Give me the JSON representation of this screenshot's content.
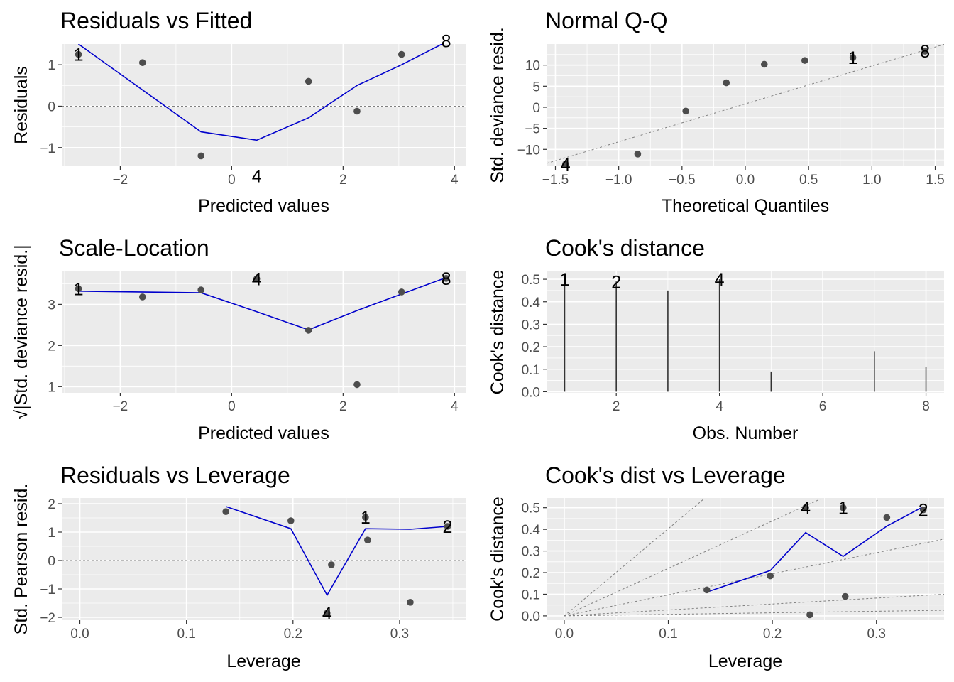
{
  "chart_data": [
    {
      "id": "p1",
      "type": "scatter",
      "title": "Residuals vs Fitted",
      "xlabel": "Predicted values",
      "ylabel": "Residuals",
      "xlim": [
        -3.05,
        4.2
      ],
      "ylim": [
        -1.45,
        1.5
      ],
      "xticks": [
        -2,
        0,
        2,
        4
      ],
      "yticks": [
        -1,
        0,
        1
      ],
      "hline": 0,
      "points": [
        {
          "x": -2.75,
          "y": 1.25
        },
        {
          "x": -1.6,
          "y": 1.05
        },
        {
          "x": -0.55,
          "y": -1.2
        },
        {
          "x": 0.45,
          "y": -1.68
        },
        {
          "x": 1.38,
          "y": 0.6
        },
        {
          "x": 2.25,
          "y": -0.12
        },
        {
          "x": 3.05,
          "y": 1.25
        },
        {
          "x": 3.85,
          "y": 1.58
        }
      ],
      "smooth": {
        "x": [
          -2.75,
          -0.55,
          0.45,
          1.38,
          2.25,
          3.05,
          3.85
        ],
        "y": [
          1.5,
          -0.62,
          -0.82,
          -0.28,
          0.5,
          1.0,
          1.55
        ]
      },
      "labels": [
        {
          "x": -2.75,
          "y": 1.25,
          "text": "1"
        },
        {
          "x": 0.45,
          "y": -1.68,
          "text": "4"
        },
        {
          "x": 3.85,
          "y": 1.58,
          "text": "8"
        }
      ]
    },
    {
      "id": "p2",
      "type": "scatter",
      "title": "Normal Q-Q",
      "xlabel": "Theoretical Quantiles",
      "ylabel": "Std. deviance resid.",
      "xlim": [
        -1.57,
        1.57
      ],
      "ylim": [
        -14,
        15
      ],
      "xticks": [
        -1.5,
        -1.0,
        -0.5,
        0.0,
        0.5,
        1.0,
        1.5
      ],
      "yticks": [
        -10,
        -5,
        0,
        5,
        10
      ],
      "refline": {
        "x": [
          -1.6,
          1.6
        ],
        "y": [
          -13.6,
          15.2
        ]
      },
      "points": [
        {
          "x": -1.42,
          "y": -13.5
        },
        {
          "x": -0.85,
          "y": -11.1
        },
        {
          "x": -0.47,
          "y": -0.9
        },
        {
          "x": -0.15,
          "y": 5.8
        },
        {
          "x": 0.15,
          "y": 10.2
        },
        {
          "x": 0.47,
          "y": 11.1
        },
        {
          "x": 0.85,
          "y": 11.8
        },
        {
          "x": 1.42,
          "y": 13.3
        }
      ],
      "labels": [
        {
          "x": -1.42,
          "y": -13.5,
          "text": "4"
        },
        {
          "x": 0.85,
          "y": 11.8,
          "text": "1"
        },
        {
          "x": 1.42,
          "y": 13.3,
          "text": "8"
        }
      ]
    },
    {
      "id": "p3",
      "type": "scatter",
      "title": "Scale-Location",
      "xlabel": "Predicted values",
      "ylabel": "√|Std. deviance resid.|",
      "xlim": [
        -3.05,
        4.2
      ],
      "ylim": [
        0.85,
        3.8
      ],
      "xticks": [
        -2,
        0,
        2,
        4
      ],
      "yticks": [
        1,
        2,
        3
      ],
      "points": [
        {
          "x": -2.75,
          "y": 3.38
        },
        {
          "x": -1.6,
          "y": 3.18
        },
        {
          "x": -0.55,
          "y": 3.35
        },
        {
          "x": 0.45,
          "y": 3.62
        },
        {
          "x": 1.38,
          "y": 2.37
        },
        {
          "x": 2.25,
          "y": 1.05
        },
        {
          "x": 3.05,
          "y": 3.3
        },
        {
          "x": 3.85,
          "y": 3.63
        }
      ],
      "smooth": {
        "x": [
          -2.75,
          -0.55,
          0.45,
          1.38,
          2.25,
          3.05,
          3.85
        ],
        "y": [
          3.32,
          3.28,
          2.82,
          2.38,
          2.85,
          3.25,
          3.65
        ]
      },
      "labels": [
        {
          "x": -2.75,
          "y": 3.38,
          "text": "1"
        },
        {
          "x": 0.45,
          "y": 3.62,
          "text": "4"
        },
        {
          "x": 3.85,
          "y": 3.63,
          "text": "8"
        }
      ]
    },
    {
      "id": "p4",
      "type": "bar",
      "title": "Cook's distance",
      "xlabel": "Obs. Number",
      "ylabel": "Cook's distance",
      "xlim": [
        0.65,
        8.35
      ],
      "ylim": [
        -0.005,
        0.535
      ],
      "xticks": [
        2,
        4,
        6,
        8
      ],
      "yticks": [
        0.0,
        0.1,
        0.2,
        0.3,
        0.4,
        0.5
      ],
      "x": [
        1,
        2,
        3,
        4,
        5,
        6,
        7,
        8
      ],
      "values": [
        0.5,
        0.49,
        0.45,
        0.5,
        0.09,
        0.0,
        0.18,
        0.11
      ],
      "labels": [
        {
          "x": 1,
          "y": 0.5,
          "text": "1"
        },
        {
          "x": 2,
          "y": 0.49,
          "text": "2"
        },
        {
          "x": 4,
          "y": 0.5,
          "text": "4"
        }
      ]
    },
    {
      "id": "p5",
      "type": "scatter",
      "title": "Residuals vs Leverage",
      "xlabel": "Leverage",
      "ylabel": "Std. Pearson resid.",
      "xlim": [
        -0.017,
        0.362
      ],
      "ylim": [
        -2.1,
        2.2
      ],
      "xticks": [
        0.0,
        0.1,
        0.2,
        0.3
      ],
      "yticks": [
        -2,
        -1,
        0,
        1,
        2
      ],
      "hline": 0,
      "points": [
        {
          "x": 0.137,
          "y": 1.72
        },
        {
          "x": 0.198,
          "y": 1.4
        },
        {
          "x": 0.232,
          "y": -1.85
        },
        {
          "x": 0.236,
          "y": -0.15
        },
        {
          "x": 0.268,
          "y": 1.52
        },
        {
          "x": 0.27,
          "y": 0.72
        },
        {
          "x": 0.31,
          "y": -1.47
        },
        {
          "x": 0.345,
          "y": 1.2
        }
      ],
      "smooth": {
        "x": [
          0.137,
          0.198,
          0.232,
          0.268,
          0.31,
          0.345
        ],
        "y": [
          1.9,
          1.12,
          -1.22,
          1.12,
          1.1,
          1.2
        ]
      },
      "labels": [
        {
          "x": 0.232,
          "y": -1.85,
          "text": "4"
        },
        {
          "x": 0.268,
          "y": 1.52,
          "text": "1"
        },
        {
          "x": 0.345,
          "y": 1.2,
          "text": "2"
        }
      ]
    },
    {
      "id": "p6",
      "type": "scatter",
      "title": "Cook's dist vs Leverage",
      "xlabel": "Leverage",
      "ylabel": "Cook's distance",
      "xlim": [
        -0.017,
        0.365
      ],
      "ylim": [
        -0.02,
        0.545
      ],
      "xticks": [
        0.0,
        0.1,
        0.2,
        0.3
      ],
      "yticks": [
        0.0,
        0.1,
        0.2,
        0.3,
        0.4,
        0.5
      ],
      "guides": [
        {
          "x": [
            0,
            0.134
          ],
          "y": [
            0,
            0.54
          ]
        },
        {
          "x": [
            0,
            0.246
          ],
          "y": [
            0,
            0.54
          ]
        },
        {
          "x": [
            0,
            0.365
          ],
          "y": [
            0,
            0.355
          ]
        },
        {
          "x": [
            0,
            0.365
          ],
          "y": [
            0,
            0.1
          ]
        },
        {
          "x": [
            0,
            0.365
          ],
          "y": [
            0,
            0.026
          ]
        }
      ],
      "points": [
        {
          "x": 0.137,
          "y": 0.12
        },
        {
          "x": 0.198,
          "y": 0.185
        },
        {
          "x": 0.232,
          "y": 0.5
        },
        {
          "x": 0.236,
          "y": 0.005
        },
        {
          "x": 0.268,
          "y": 0.5
        },
        {
          "x": 0.27,
          "y": 0.09
        },
        {
          "x": 0.31,
          "y": 0.455
        },
        {
          "x": 0.345,
          "y": 0.49
        }
      ],
      "smooth": {
        "x": [
          0.137,
          0.198,
          0.232,
          0.268,
          0.31,
          0.345
        ],
        "y": [
          0.11,
          0.21,
          0.385,
          0.275,
          0.415,
          0.505
        ]
      },
      "labels": [
        {
          "x": 0.232,
          "y": 0.5,
          "text": "4"
        },
        {
          "x": 0.268,
          "y": 0.5,
          "text": "1"
        },
        {
          "x": 0.345,
          "y": 0.49,
          "text": "2"
        }
      ]
    }
  ]
}
